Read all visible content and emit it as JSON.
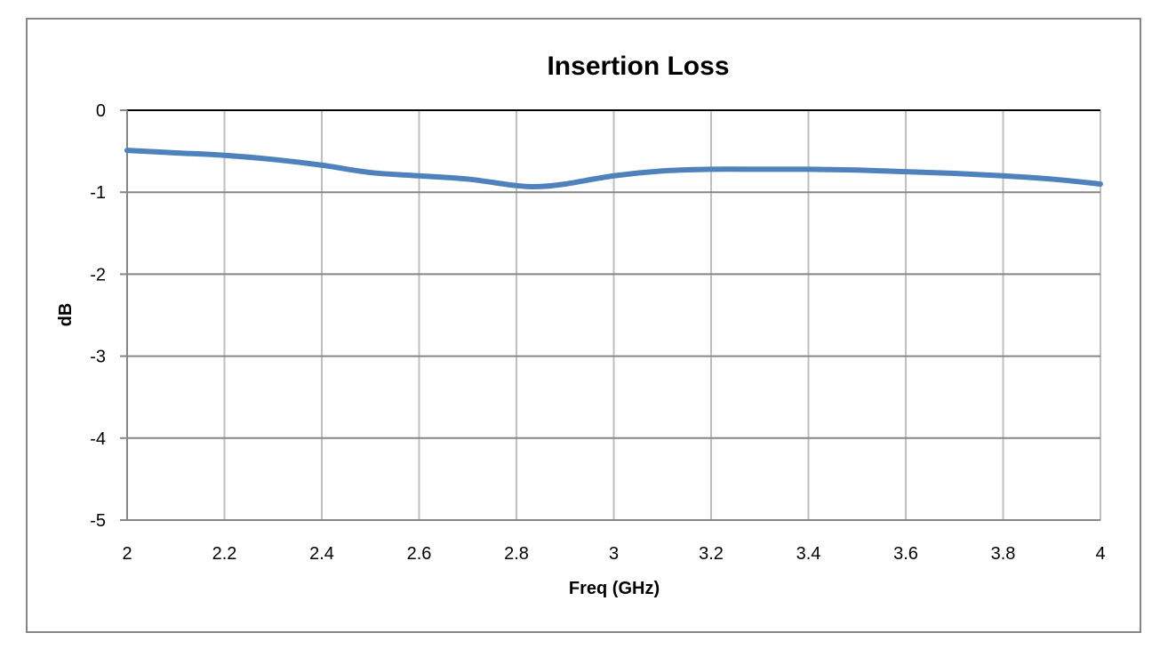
{
  "chart_data": {
    "type": "line",
    "title": "Insertion Loss",
    "xlabel": "Freq (GHz)",
    "ylabel": "dB",
    "xlim": [
      2,
      4
    ],
    "ylim": [
      -5,
      0
    ],
    "x_ticks": [
      2,
      2.2,
      2.4,
      2.6,
      2.8,
      3,
      3.2,
      3.4,
      3.6,
      3.8,
      4
    ],
    "x_tick_labels": [
      "2",
      "2.2",
      "2.4",
      "2.6",
      "2.8",
      "3",
      "3.2",
      "3.4",
      "3.6",
      "3.8",
      "4"
    ],
    "y_ticks": [
      0,
      -1,
      -2,
      -3,
      -4,
      -5
    ],
    "y_tick_labels": [
      "0",
      "-1",
      "-2",
      "-3",
      "-4",
      "-5"
    ],
    "grid": true,
    "legend": "none",
    "colors": {
      "line": "#4f81bd",
      "grid": "#bfbfbf",
      "axis": "#868686",
      "frame": "#868686"
    },
    "series": [
      {
        "x": [
          2.0,
          2.1,
          2.2,
          2.3,
          2.4,
          2.5,
          2.6,
          2.7,
          2.8,
          2.85,
          2.9,
          3.0,
          3.1,
          3.2,
          3.3,
          3.4,
          3.5,
          3.6,
          3.7,
          3.8,
          3.9,
          4.0
        ],
        "y": [
          -0.49,
          -0.52,
          -0.55,
          -0.6,
          -0.67,
          -0.76,
          -0.8,
          -0.84,
          -0.92,
          -0.93,
          -0.9,
          -0.8,
          -0.74,
          -0.72,
          -0.72,
          -0.72,
          -0.73,
          -0.75,
          -0.77,
          -0.8,
          -0.84,
          -0.9
        ]
      }
    ]
  }
}
